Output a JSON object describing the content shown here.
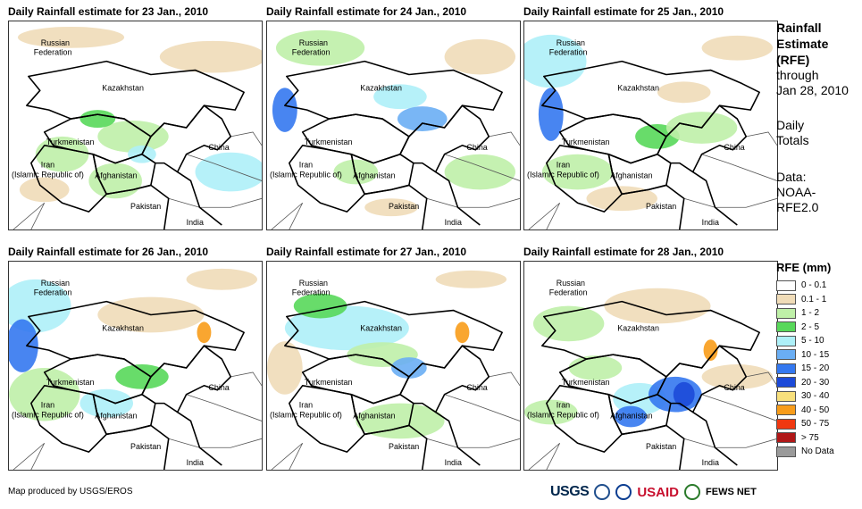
{
  "panels": [
    {
      "title": "Daily Rainfall estimate for 23 Jan., 2010"
    },
    {
      "title": "Daily Rainfall estimate for 24 Jan., 2010"
    },
    {
      "title": "Daily Rainfall estimate for 25 Jan., 2010"
    },
    {
      "title": "Daily Rainfall estimate for 26 Jan., 2010"
    },
    {
      "title": "Daily Rainfall estimate for 27 Jan., 2010"
    },
    {
      "title": "Daily Rainfall estimate for 28 Jan., 2010"
    }
  ],
  "map_labels": {
    "russia_1": "Russian",
    "russia_2": "Federation",
    "kazakhstan": "Kazakhstan",
    "turkmenistan": "Turkmenistan",
    "china": "China",
    "iran_1": "Iran",
    "iran_2": "(Islamic Republic of)",
    "afghanistan": "Afghanistan",
    "pakistan": "Pakistan",
    "india": "India"
  },
  "sidebar": {
    "line1": "Rainfall",
    "line2": "Estimate",
    "line3": "(RFE)",
    "line4": "through",
    "line5": "Jan 28, 2010",
    "line6": "Daily",
    "line7": "Totals",
    "line8": "Data:",
    "line9": "NOAA-",
    "line10": "RFE2.0"
  },
  "legend": {
    "title": "RFE (mm)",
    "items": [
      {
        "label": "0 - 0.1",
        "color": "#ffffff"
      },
      {
        "label": "0.1 - 1",
        "color": "#f0dcb8"
      },
      {
        "label": "1 - 2",
        "color": "#bff0a8"
      },
      {
        "label": "2 - 5",
        "color": "#58d85a"
      },
      {
        "label": "5 - 10",
        "color": "#aef0f8"
      },
      {
        "label": "10 - 15",
        "color": "#6aaef4"
      },
      {
        "label": "15 - 20",
        "color": "#3478f0"
      },
      {
        "label": "20 - 30",
        "color": "#1c4ad8"
      },
      {
        "label": "30 - 40",
        "color": "#f8e07c"
      },
      {
        "label": "40 - 50",
        "color": "#f89c1a"
      },
      {
        "label": "50 - 75",
        "color": "#f03810"
      },
      {
        "label": "> 75",
        "color": "#b01818"
      },
      {
        "label": "No Data",
        "color": "#9a9a9a"
      }
    ]
  },
  "footer": {
    "credit": "Map produced by USGS/EROS",
    "logo_usgs": "USGS",
    "logo_usaid": "USAID",
    "logo_fews": "FEWS NET"
  }
}
